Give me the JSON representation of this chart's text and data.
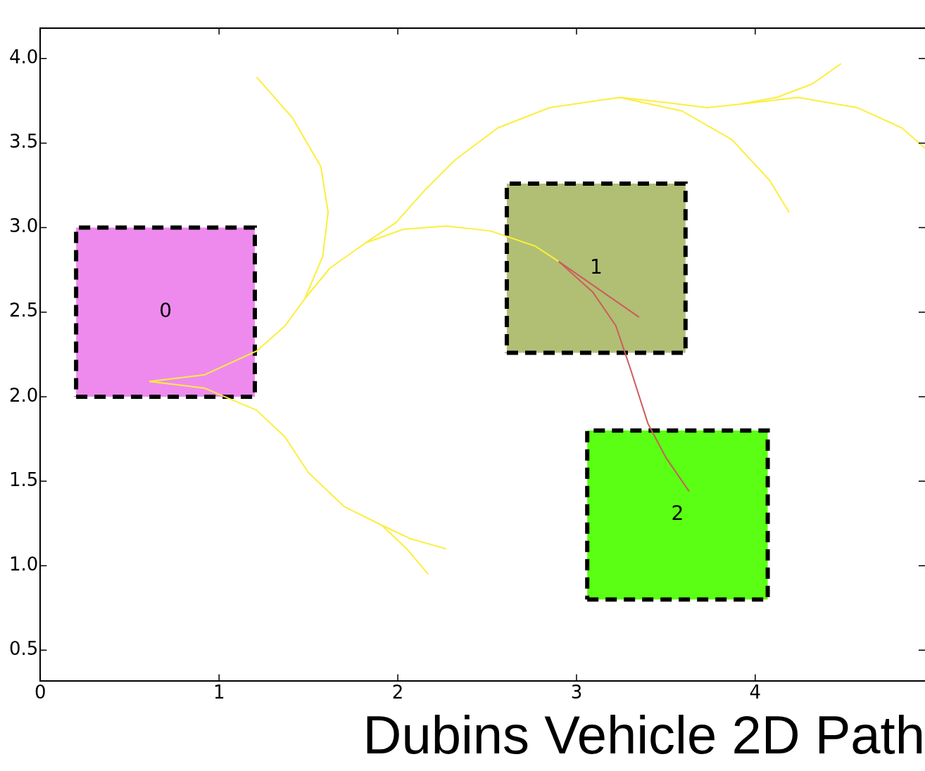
{
  "chart_data": {
    "type": "line",
    "title": "Dubins Vehicle 2D Path",
    "xlim": [
      0,
      4.95
    ],
    "ylim": [
      0.32,
      4.18
    ],
    "xticks": [
      0,
      1,
      2,
      3,
      4
    ],
    "yticks": [
      {
        "value": 0.5,
        "label": "0.5"
      },
      {
        "value": 1,
        "label": "1.0"
      },
      {
        "value": 1.5,
        "label": "1.5"
      },
      {
        "value": 2,
        "label": "2.0"
      },
      {
        "value": 2.5,
        "label": "2.5"
      },
      {
        "value": 3,
        "label": "3.0"
      },
      {
        "value": 3.5,
        "label": "3.5"
      },
      {
        "value": 4,
        "label": "4.0"
      }
    ],
    "grid": false,
    "legend": false,
    "marker": "none",
    "series": [
      {
        "type": "area",
        "name": "0",
        "line_style": "dashed",
        "color": "#ee8aee",
        "x": [
          0.2,
          1.2,
          1.2,
          0.2,
          0.2
        ],
        "values": [
          2,
          2,
          3,
          3,
          2
        ]
      },
      {
        "type": "area",
        "name": "1",
        "line_style": "dashed",
        "color": "#b0bf74",
        "x": [
          2.61,
          3.61,
          3.61,
          2.61,
          2.61
        ],
        "values": [
          2.26,
          2.26,
          3.26,
          3.26,
          2.26
        ]
      },
      {
        "type": "area",
        "name": "2",
        "line_style": "dashed",
        "color": "#5aff14",
        "x": [
          3.06,
          4.07,
          4.07,
          3.06,
          3.06
        ],
        "values": [
          0.8,
          0.8,
          1.8,
          1.8,
          0.8
        ]
      },
      {
        "color": "#fcee3c",
        "x": [
          0.61,
          0.92,
          1.21,
          1.37,
          1.48,
          1.62,
          1.82,
          2.03,
          2.27,
          2.52,
          2.77,
          2.9
        ],
        "values": [
          2.09,
          2.13,
          2.27,
          2.42,
          2.58,
          2.76,
          2.91,
          2.99,
          3.01,
          2.98,
          2.89,
          2.8
        ]
      },
      {
        "color": "#fcee3c",
        "x": [
          1.21,
          1.41,
          1.57,
          1.61,
          1.58,
          1.48
        ],
        "values": [
          3.89,
          3.65,
          3.36,
          3.09,
          2.83,
          2.58
        ]
      },
      {
        "color": "#fcee3c",
        "x": [
          1.82,
          1.99,
          2.15,
          2.32,
          2.56,
          2.85,
          3.24,
          3.5,
          3.73,
          3.91,
          4.12,
          4.32,
          4.48
        ],
        "values": [
          2.91,
          3.03,
          3.22,
          3.4,
          3.59,
          3.71,
          3.77,
          3.74,
          3.71,
          3.73,
          3.77,
          3.85,
          3.97
        ]
      },
      {
        "color": "#fcee3c",
        "x": [
          3.24,
          3.59,
          3.87,
          4.08,
          4.19
        ],
        "values": [
          3.77,
          3.69,
          3.52,
          3.28,
          3.09
        ]
      },
      {
        "color": "#fcee3c",
        "x": [
          3.91,
          4.24,
          4.57,
          4.82,
          4.95
        ],
        "values": [
          3.73,
          3.77,
          3.71,
          3.59,
          3.47
        ]
      },
      {
        "color": "#fcee3c",
        "x": [
          0.61,
          0.92,
          1.21,
          1.37,
          1.5,
          1.7,
          1.91,
          2.07,
          2.27
        ],
        "values": [
          2.09,
          2.05,
          1.92,
          1.76,
          1.55,
          1.35,
          1.24,
          1.16,
          1.1
        ]
      },
      {
        "color": "#fcee3c",
        "x": [
          1.91,
          2.05,
          2.17
        ],
        "values": [
          1.24,
          1.1,
          0.95
        ]
      },
      {
        "color": "#cd5c5c",
        "x": [
          2.9,
          3.35
        ],
        "values": [
          2.8,
          2.47
        ]
      },
      {
        "color": "#cd5c5c",
        "x": [
          2.9,
          3.09,
          3.22,
          3.3,
          3.4,
          3.5,
          3.63
        ],
        "values": [
          2.8,
          2.62,
          2.42,
          2.17,
          1.84,
          1.64,
          1.44
        ]
      }
    ]
  }
}
